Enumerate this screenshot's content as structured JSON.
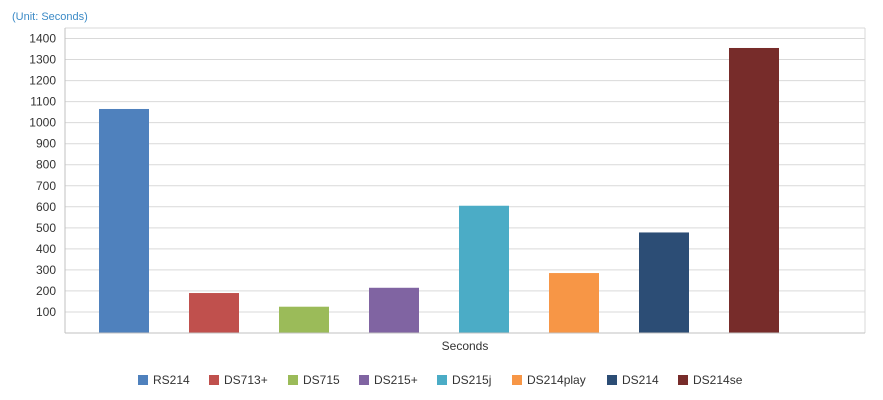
{
  "unit_label": "(Unit: Seconds)",
  "chart_data": {
    "type": "bar",
    "xlabel": "Seconds",
    "ylabel": "",
    "ylim": [
      0,
      1450
    ],
    "yticks": [
      100,
      200,
      300,
      400,
      500,
      600,
      700,
      800,
      900,
      1000,
      1100,
      1200,
      1300,
      1400
    ],
    "grid": true,
    "legend_position": "bottom",
    "series": [
      {
        "name": "RS214",
        "value": 1065,
        "color": "#4f81bd"
      },
      {
        "name": "DS713+",
        "value": 190,
        "color": "#c0504d"
      },
      {
        "name": "DS715",
        "value": 125,
        "color": "#9bbb59"
      },
      {
        "name": "DS215+",
        "value": 215,
        "color": "#8064a2"
      },
      {
        "name": "DS215j",
        "value": 605,
        "color": "#4bacc6"
      },
      {
        "name": "DS214play",
        "value": 285,
        "color": "#f79646"
      },
      {
        "name": "DS214",
        "value": 478,
        "color": "#2c4d75"
      },
      {
        "name": "DS214se",
        "value": 1355,
        "color": "#772c2a"
      }
    ]
  }
}
